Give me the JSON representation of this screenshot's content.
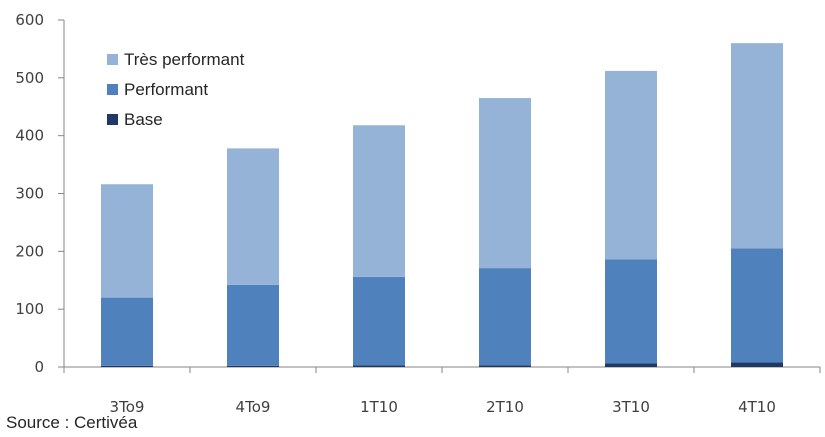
{
  "chart_data": {
    "type": "bar",
    "stacked": true,
    "categories": [
      "3T09",
      "4T09",
      "1T10",
      "2T10",
      "3T10",
      "4T10"
    ],
    "series": [
      {
        "name": "Base",
        "values": [
          2,
          2,
          3,
          3,
          6,
          8
        ],
        "color": "#1f3864"
      },
      {
        "name": "Performant",
        "values": [
          118,
          140,
          153,
          168,
          180,
          197
        ],
        "color": "#4f81bd"
      },
      {
        "name": "Très performant",
        "values": [
          196,
          236,
          262,
          294,
          326,
          355
        ],
        "color": "#95b3d7"
      }
    ],
    "ylim": [
      0,
      600
    ],
    "yticks": [
      "0",
      "100",
      "200",
      "300",
      "400",
      "500",
      "600"
    ],
    "xtick_labels": [
      "3To9",
      "4To9",
      "1T10",
      "2T10",
      "3T10",
      "4T10"
    ],
    "legend_position": "top-left",
    "grid": false
  },
  "source": "Source : Certivéa"
}
